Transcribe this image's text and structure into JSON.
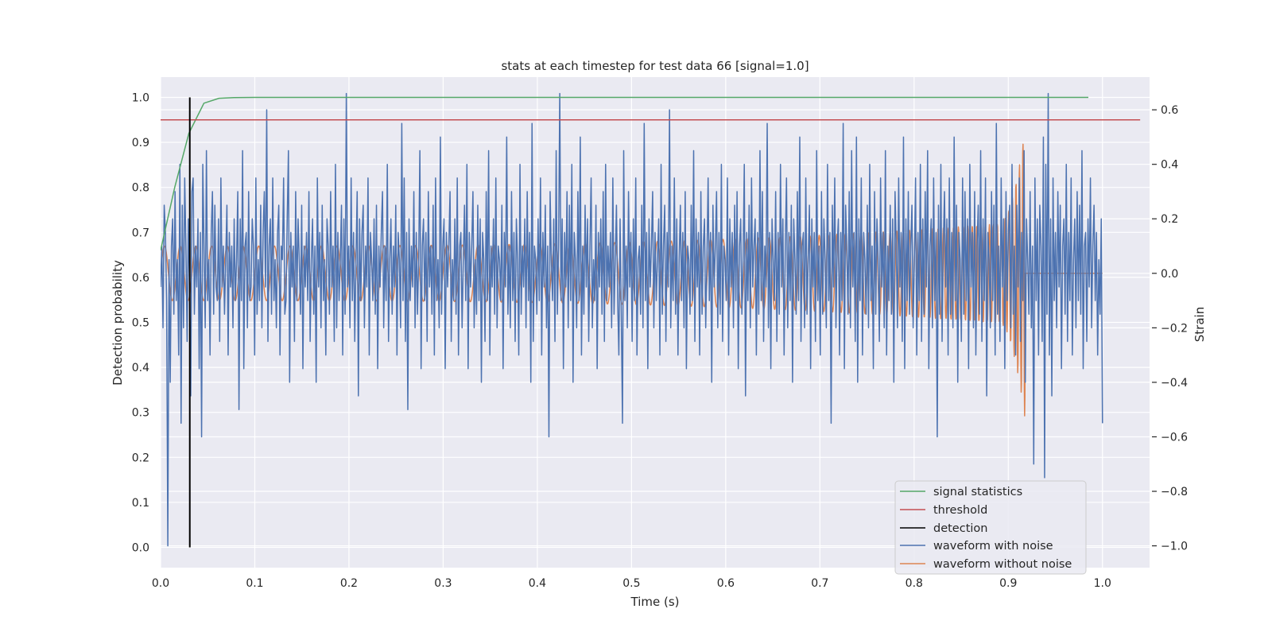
{
  "chart_data": {
    "type": "line",
    "title": "stats at each timestep for test data 66 [signal=1.0]",
    "xlabel": "Time (s)",
    "ylabel_left": "Detection probability",
    "ylabel_right": "Strain",
    "xlim": [
      0.0,
      1.05
    ],
    "ylim_left": [
      -0.045,
      1.045
    ],
    "ylim_right": [
      -1.08,
      0.72
    ],
    "x_ticks": [
      "0.0",
      "0.1",
      "0.2",
      "0.3",
      "0.4",
      "0.5",
      "0.6",
      "0.7",
      "0.8",
      "0.9",
      "1.0"
    ],
    "y_ticks_left": [
      "0.0",
      "0.1",
      "0.2",
      "0.3",
      "0.4",
      "0.5",
      "0.6",
      "0.7",
      "0.8",
      "0.9",
      "1.0"
    ],
    "y_ticks_right": [
      "−1.0",
      "−0.8",
      "−0.6",
      "−0.4",
      "−0.2",
      "0.0",
      "0.2",
      "0.4",
      "0.6"
    ],
    "grid": true,
    "legend_position": "lower-right",
    "series": [
      {
        "name": "signal statistics",
        "axis": "left",
        "color": "#55a868",
        "x": [
          0.0,
          0.015,
          0.03,
          0.046,
          0.062,
          0.078,
          0.1,
          0.2,
          0.4,
          0.6,
          0.8,
          0.985
        ],
        "values": [
          0.66,
          0.8,
          0.92,
          0.987,
          0.998,
          0.9995,
          1.0,
          1.0,
          1.0,
          1.0,
          1.0,
          1.0
        ]
      },
      {
        "name": "threshold",
        "axis": "left",
        "color": "#c44e52",
        "x": [
          0.0,
          1.04
        ],
        "values": [
          0.95,
          0.95
        ]
      },
      {
        "name": "detection",
        "axis": "left",
        "color": "#000000",
        "x": [
          0.031,
          0.031
        ],
        "values": [
          0.0,
          1.0
        ]
      },
      {
        "name": "waveform with noise",
        "axis": "right",
        "color": "#4c72b0",
        "x_start": 0.0,
        "x_end": 1.0,
        "values": [
          -0.05,
          0.1,
          -0.2,
          0.25,
          0.15,
          -0.1,
          -1.0,
          0.05,
          -0.4,
          0.1,
          0.2,
          -0.15,
          0.3,
          -0.1,
          0.05,
          -0.3,
          0.4,
          -0.55,
          0.25,
          -0.2,
          0.35,
          0.1,
          -0.25,
          0.2,
          -0.05,
          -0.45,
          0.3,
          0.35,
          -0.15,
          0.1,
          -0.05,
          0.2,
          -0.35,
          0.15,
          -0.6,
          0.4,
          0.1,
          -0.2,
          0.45,
          -0.1,
          0.05,
          -0.3,
          0.15,
          0.3,
          -0.15,
          0.25,
          -0.05,
          -0.1,
          0.2,
          -0.25,
          0.35,
          -0.05,
          0.1,
          -0.15,
          0.05,
          0.25,
          -0.3,
          0.15,
          -0.05,
          0.1,
          -0.2,
          0.2,
          -0.1,
          0.05,
          0.3,
          -0.5,
          0.2,
          -0.1,
          0.45,
          -0.35,
          0.1,
          0.15,
          -0.2,
          0.3,
          -0.1,
          -0.05,
          0.2,
          0.1,
          -0.3,
          0.35,
          -0.15,
          0.05,
          -0.1,
          0.25,
          -0.2,
          0.15,
          0.3,
          -0.05,
          0.6,
          -0.25,
          0.1,
          0.2,
          -0.15,
          0.35,
          -0.1,
          0.05,
          -0.2,
          0.15,
          0.25,
          -0.3,
          0.1,
          0.05,
          0.35,
          -0.15,
          -0.1,
          0.2,
          0.45,
          -0.4,
          0.15,
          -0.05,
          0.1,
          -0.25,
          0.3,
          -0.1,
          0.2,
          0.05,
          -0.15,
          0.25,
          -0.35,
          0.1,
          -0.05,
          0.15,
          -0.1,
          0.3,
          -0.25,
          0.05,
          0.2,
          -0.15,
          0.1,
          -0.4,
          0.35,
          -0.05,
          0.15,
          -0.2,
          0.25,
          -0.1,
          0.05,
          -0.3,
          0.2,
          0.1,
          -0.15,
          0.3,
          -0.05,
          0.1,
          -0.25,
          0.4,
          -0.2,
          0.15,
          -0.1,
          0.05,
          0.25,
          -0.3,
          0.2,
          -0.15,
          0.66,
          -0.05,
          0.1,
          -0.2,
          0.35,
          -0.1,
          0.15,
          -0.25,
          0.05,
          0.3,
          -0.45,
          0.2,
          -0.1,
          0.15,
          0.25,
          -0.2,
          0.1,
          -0.05,
          0.35,
          -0.3,
          0.15,
          0.05,
          -0.1,
          0.2,
          -0.15,
          0.25,
          -0.35,
          0.1,
          -0.05,
          0.15,
          0.3,
          -0.2,
          0.1,
          -0.1,
          0.4,
          -0.25,
          0.05,
          0.2,
          -0.15,
          0.1,
          -0.05,
          0.25,
          -0.3,
          0.15,
          0.05,
          -0.2,
          0.55,
          -0.1,
          0.35,
          -0.25,
          0.15,
          -0.5,
          0.2,
          -0.1,
          0.1,
          -0.05,
          0.3,
          -0.2,
          0.15,
          -0.15,
          0.05,
          0.45,
          -0.35,
          0.1,
          0.2,
          -0.1,
          0.15,
          -0.25,
          0.3,
          -0.05,
          0.1,
          -0.15,
          0.25,
          -0.3,
          0.35,
          -0.1,
          0.05,
          -0.2,
          0.5,
          -0.15,
          0.1,
          0.2,
          -0.35,
          0.15,
          -0.05,
          0.1,
          0.3,
          -0.25,
          0.05,
          -0.1,
          0.2,
          -0.15,
          0.35,
          -0.3,
          0.1,
          0.15,
          -0.2,
          0.05,
          0.25,
          -0.1,
          0.4,
          -0.35,
          0.15,
          -0.05,
          0.1,
          0.3,
          -0.2,
          0.05,
          -0.15,
          0.25,
          -0.1,
          0.2,
          -0.4,
          0.15,
          0.05,
          -0.25,
          0.3,
          -0.1,
          0.45,
          -0.3,
          0.1,
          -0.05,
          0.2,
          -0.15,
          0.35,
          -0.2,
          0.1,
          0.05,
          -0.1,
          0.25,
          -0.35,
          0.15,
          -0.05,
          0.5,
          -0.15,
          0.1,
          -0.2,
          0.3,
          -0.1,
          0.15,
          -0.25,
          0.2,
          0.05,
          -0.3,
          0.4,
          -0.15,
          0.1,
          -0.05,
          0.2,
          -0.2,
          0.3,
          -0.1,
          0.15,
          -0.4,
          0.55,
          -0.25,
          0.1,
          0.05,
          -0.15,
          0.2,
          -0.1,
          0.35,
          -0.3,
          0.15,
          -0.05,
          0.25,
          -0.2,
          0.1,
          -0.6,
          0.3,
          0.05,
          -0.1,
          0.2,
          -0.25,
          0.45,
          -0.15,
          0.1,
          0.66,
          -0.1,
          0.2,
          -0.35,
          0.15,
          -0.05,
          0.3,
          -0.2,
          0.25,
          -0.1,
          0.4,
          -0.4,
          0.15,
          0.05,
          -0.2,
          0.3,
          -0.1,
          0.5,
          -0.3,
          0.1,
          -0.15,
          0.25,
          -0.05,
          0.2,
          -0.25,
          0.1,
          0.35,
          -0.2,
          0.05,
          -0.1,
          0.25,
          -0.35,
          0.15,
          -0.05,
          0.2,
          -0.15,
          0.3,
          -0.25,
          0.4,
          -0.1,
          0.1,
          -0.05,
          0.15,
          -0.2,
          0.35,
          -0.15,
          0.05,
          0.25,
          -0.1,
          -0.3,
          0.2,
          -0.15,
          -0.55,
          0.45,
          -0.1,
          0.1,
          -0.2,
          0.3,
          -0.05,
          0.15,
          -0.25,
          0.2,
          -0.1,
          0.35,
          -0.3,
          0.05,
          0.1,
          -0.15,
          0.25,
          -0.2,
          0.55,
          -0.1,
          0.15,
          -0.35,
          0.2,
          -0.05,
          0.1,
          0.3,
          -0.2,
          0.15,
          -0.1,
          0.05,
          0.2,
          -0.3,
          0.4,
          -0.15,
          0.1,
          0.25,
          -0.25,
          0.15,
          -0.05,
          0.6,
          -0.2,
          0.1,
          -0.1,
          0.35,
          -0.15,
          0.2,
          -0.3,
          0.05,
          0.25,
          -0.1,
          0.15,
          -0.2,
          0.3,
          -0.35,
          0.1,
          0.05,
          -0.15,
          0.25,
          -0.1,
          0.45,
          -0.25,
          0.2,
          -0.05,
          0.15,
          -0.3,
          0.3,
          -0.15,
          0.1,
          0.2,
          -0.2,
          0.05,
          0.35,
          -0.1,
          0.15,
          -0.4,
          0.25,
          -0.05,
          0.1,
          0.3,
          -0.2,
          0.15,
          -0.15,
          0.4,
          -0.25,
          0.1,
          0.05,
          -0.1,
          0.35,
          -0.3,
          0.2,
          -0.05,
          0.15,
          -0.2,
          0.25,
          -0.1,
          0.3,
          -0.35,
          0.1,
          0.2,
          -0.15,
          0.05,
          0.4,
          -0.45,
          0.15,
          -0.1,
          0.25,
          -0.2,
          0.35,
          -0.05,
          0.1,
          0.2,
          -0.3,
          0.15,
          -0.15,
          0.45,
          -0.1,
          0.3,
          -0.25,
          0.1,
          -0.05,
          0.55,
          -0.2,
          0.15,
          -0.35,
          0.2,
          0.05,
          -0.1,
          0.3,
          -0.25,
          0.15,
          -0.15,
          0.4,
          -0.05,
          0.2,
          -0.3,
          0.1,
          0.35,
          -0.2,
          0.15,
          -0.1,
          0.25,
          -0.4,
          0.2,
          0.05,
          -0.15,
          0.3,
          -0.1,
          0.5,
          -0.25,
          0.1,
          0.15,
          -0.2,
          0.35,
          -0.15,
          0.05,
          0.25,
          -0.35,
          0.2,
          -0.05,
          0.15,
          -0.25,
          0.45,
          -0.1,
          0.1,
          -0.3,
          0.3,
          -0.15,
          0.2,
          0.05,
          -0.2,
          0.4,
          -0.1,
          0.15,
          -0.55,
          0.25,
          -0.05,
          0.35,
          -0.2,
          0.1,
          0.2,
          -0.3,
          0.15,
          -0.1,
          0.55,
          -0.35,
          0.25,
          0.1,
          -0.15,
          0.3,
          -0.2,
          0.45,
          -0.05,
          0.15,
          -0.25,
          0.5,
          -0.4,
          0.2,
          -0.1,
          0.35,
          -0.3,
          0.15,
          0.05,
          -0.15,
          0.25,
          -0.2,
          0.4,
          -0.1,
          0.1,
          -0.35,
          0.3,
          -0.15,
          0.2,
          0.05,
          -0.25,
          0.35,
          -0.05,
          0.15,
          -0.2,
          0.45,
          -0.3,
          0.1,
          -0.1,
          0.25,
          -0.15,
          0.2,
          -0.4,
          0.3,
          0.1,
          -0.2,
          0.35,
          -0.05,
          0.15,
          -0.25,
          0.5,
          -0.35,
          0.2,
          -0.1,
          0.3,
          -0.15,
          0.1,
          0.25,
          -0.2,
          0.05,
          0.35,
          -0.3,
          0.15,
          -0.1,
          0.4,
          -0.25,
          0.2,
          -0.15,
          0.3,
          -0.05,
          0.45,
          -0.35,
          0.1,
          0.2,
          -0.2,
          0.35,
          -0.1,
          0.15,
          -0.6,
          0.25,
          -0.15,
          0.4,
          -0.25,
          0.1,
          0.3,
          -0.05,
          0.2,
          -0.3,
          0.35,
          -0.15,
          0.15,
          -0.2,
          0.5,
          -0.1,
          0.25,
          -0.4,
          0.15,
          0.05,
          -0.25,
          0.35,
          -0.15,
          0.3,
          -0.1,
          0.2,
          -0.35,
          0.4,
          -0.05,
          0.15,
          -0.2,
          0.3,
          -0.3,
          0.1,
          0.25,
          -0.15,
          0.45,
          -0.25,
          0.2,
          -0.1,
          0.35,
          -0.45,
          0.15,
          0.05,
          -0.2,
          0.3,
          -0.1,
          0.25,
          -0.3,
          0.55,
          -0.15,
          0.1,
          -0.25,
          0.35,
          -0.05,
          0.2,
          -0.35,
          0.3,
          -0.1,
          0.15,
          0.25,
          -0.2,
          0.4,
          -0.15,
          0.1,
          -0.3,
          0.25,
          -0.05,
          0.35,
          -0.25,
          0.15,
          -0.1,
          0.45,
          -0.4,
          0.2,
          0.05,
          -0.15,
          0.3,
          -0.2,
          0.1,
          -0.7,
          0.35,
          -0.1,
          0.2,
          -0.3,
          0.25,
          0.1,
          -0.25,
          0.5,
          -0.75,
          0.4,
          -0.15,
          0.66,
          -0.3,
          0.2,
          -0.45,
          0.35,
          -0.1,
          0.15,
          -0.2,
          0.3,
          -0.05,
          0.25,
          -0.35,
          0.1,
          0.2,
          -0.15,
          0.4,
          -0.25,
          0.15,
          -0.1,
          0.35,
          -0.3,
          0.05,
          0.2,
          -0.2,
          0.3,
          -0.1,
          0.25,
          -0.15,
          0.45,
          -0.35,
          0.1,
          0.15,
          -0.25,
          0.2,
          -0.05,
          0.35,
          -0.2,
          0.1,
          0.25,
          -0.1,
          0.15,
          -0.3,
          0.05,
          -0.15,
          0.2,
          -0.55
        ]
      },
      {
        "name": "waveform without noise",
        "axis": "right",
        "color": "#dd8452"
      }
    ]
  }
}
